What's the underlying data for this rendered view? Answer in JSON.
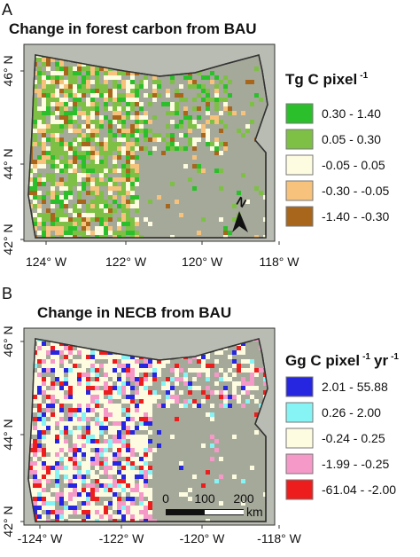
{
  "panels": [
    {
      "label": "A",
      "title": "Change in forest carbon from BAU",
      "y_labels": [
        "46° N",
        "44° N",
        "42° N"
      ],
      "x_labels": [
        "124° W",
        "122° W",
        "120° W",
        "118° W"
      ],
      "legend": {
        "title_parts": [
          {
            "text": "Tg C pixel",
            "sup": false
          },
          {
            "text": "-1",
            "sup": true
          }
        ],
        "items": [
          {
            "label": "0.30 - 1.40",
            "color": "#2bbf2b"
          },
          {
            "label": "0.05 - 0.30",
            "color": "#7dc045"
          },
          {
            "label": "-0.05 - 0.05",
            "color": "#fdfce0"
          },
          {
            "label": "-0.30 - -0.05",
            "color": "#f6c27c"
          },
          {
            "label": "-1.40 - -0.30",
            "color": "#a8661c"
          }
        ]
      },
      "north": "N"
    },
    {
      "label": "B",
      "title": "Change in NECB from BAU",
      "y_labels": [
        "46° N",
        "44° N",
        "42° N"
      ],
      "x_labels": [
        "-124° W",
        "-122° W",
        "-120° W",
        "-118° W"
      ],
      "legend": {
        "title_parts": [
          {
            "text": "Gg C pixel",
            "sup": false
          },
          {
            "text": "-1",
            "sup": true
          },
          {
            "text": "yr",
            "sup": false
          },
          {
            "text": "-1",
            "sup": true
          }
        ],
        "items": [
          {
            "label": "2.01 - 55.88",
            "color": "#2626e0"
          },
          {
            "label": "0.26 - 2.00",
            "color": "#86f3f5"
          },
          {
            "label": "-0.24 - 0.25",
            "color": "#fdfce0"
          },
          {
            "label": "-1.99 - -0.25",
            "color": "#f59ac8"
          },
          {
            "label": "-61.04 - -2.00",
            "color": "#ee1d1d"
          }
        ]
      },
      "scale": {
        "ticks": [
          "0",
          "100",
          "200"
        ],
        "unit": "km"
      }
    }
  ]
}
